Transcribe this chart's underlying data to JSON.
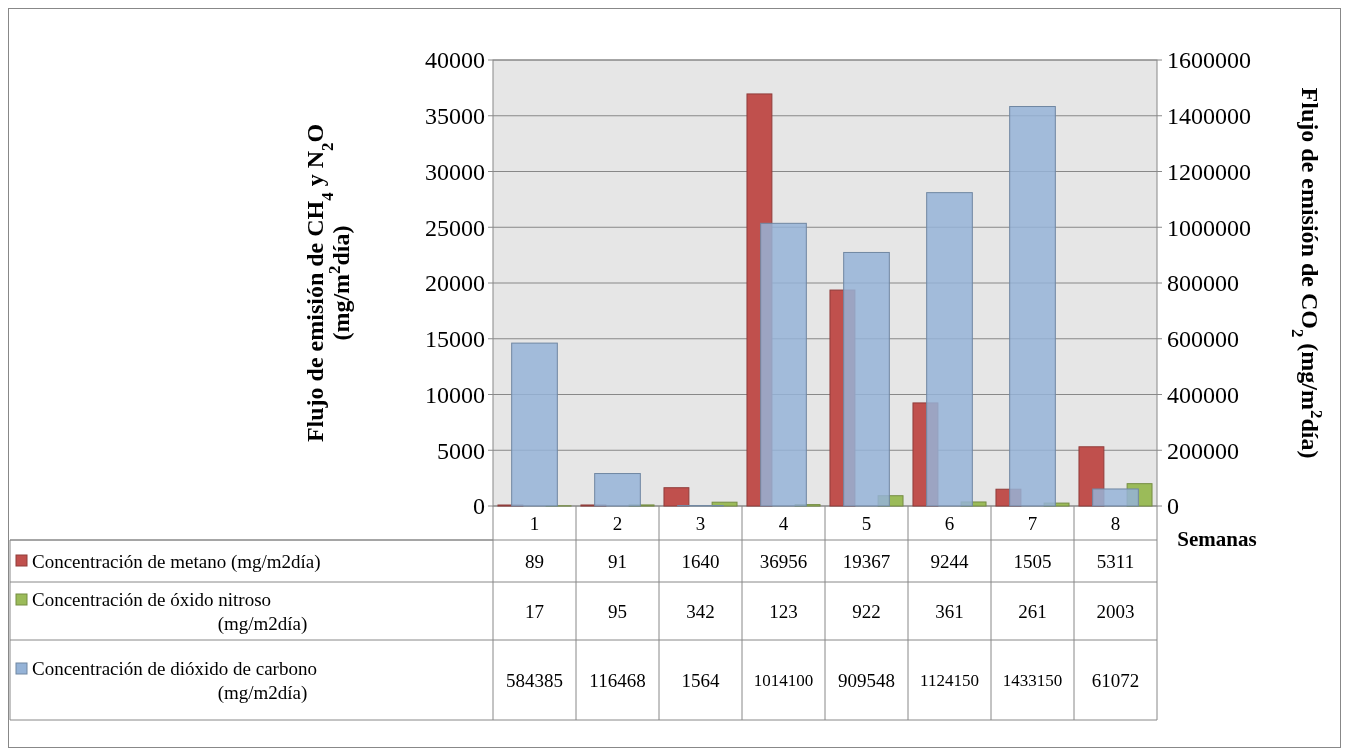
{
  "chart_data": {
    "type": "bar",
    "categories": [
      "1",
      "2",
      "3",
      "4",
      "5",
      "6",
      "7",
      "8"
    ],
    "xlabel": "Semanas",
    "ylabel": "Flujo de emisión de CH$_{4}$ y N$_{2}$O\n(mg/m$^{2}$día)",
    "y2label": "Flujo de emisión de CO$_{2}$  (mg/m$^{2}$día)",
    "ylim": [
      0,
      40000
    ],
    "yticks": [
      0,
      5000,
      10000,
      15000,
      20000,
      25000,
      30000,
      35000,
      40000
    ],
    "y2lim": [
      0,
      1600000
    ],
    "y2ticks": [
      0,
      200000,
      400000,
      600000,
      800000,
      1000000,
      1200000,
      1400000,
      1600000
    ],
    "grid": "y",
    "legend": "bottom",
    "data_labels": true,
    "series": [
      {
        "name": "Concentración de metano (mg/m2día)",
        "color": "#c0504d",
        "values": [
          89,
          91,
          1640,
          36956,
          19367,
          9244,
          1505,
          5311
        ]
      },
      {
        "name": "Concentración de óxido nitroso (mg/m2día)",
        "color": "#9bbb59",
        "values": [
          17,
          95,
          342,
          123,
          922,
          361,
          261,
          2003
        ]
      },
      {
        "name": "Concentración de dióxido de carbono (mg/m2día)",
        "color": "#95b3d7",
        "axis": "y2",
        "values": [
          584385,
          116468,
          1564,
          1014100,
          909548,
          1124150,
          1433150,
          61072
        ]
      }
    ]
  }
}
